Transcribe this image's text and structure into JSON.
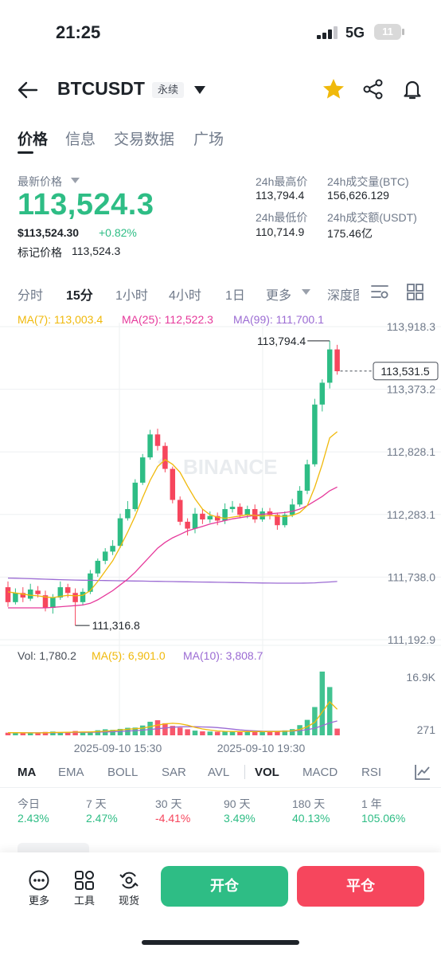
{
  "status_bar": {
    "time": "21:25",
    "network": "5G",
    "battery": "11"
  },
  "header": {
    "symbol": "BTCUSDT",
    "badge": "永续"
  },
  "tabs": [
    "价格",
    "信息",
    "交易数据",
    "广场"
  ],
  "price": {
    "latest_label": "最新价格",
    "latest": "113,524.3",
    "usd": "$113,524.30",
    "change": "+0.82%",
    "mark_label": "标记价格",
    "mark": "113,524.3"
  },
  "stats": {
    "high_label": "24h最高价",
    "high": "113,794.4",
    "vol_btc_label": "24h成交量(BTC)",
    "vol_btc": "156,626.129",
    "low_label": "24h最低价",
    "low": "110,714.9",
    "vol_usdt_label": "24h成交额(USDT)",
    "vol_usdt": "175.46亿"
  },
  "intervals": [
    "分时",
    "15分",
    "1小时",
    "4小时",
    "1日",
    "更多",
    "深度图"
  ],
  "ma": {
    "ma7": "MA(7): 113,003.4",
    "ma25": "MA(25): 112,522.3",
    "ma99": "MA(99): 111,700.1"
  },
  "axis": {
    "y": [
      "113,918.3",
      "113,373.2",
      "112,828.1",
      "112,283.1",
      "111,738.0",
      "111,192.9"
    ],
    "current": "113,531.5",
    "high_mark": "113,794.4",
    "low_mark": "111,316.8",
    "x": [
      "2025-09-10 15:30",
      "2025-09-10 19:30"
    ],
    "vol_top": "16.9K",
    "vol_bottom": "271",
    "watermark": "BINANCE"
  },
  "volume": {
    "vol": "Vol: 1,780.2",
    "ma5": "MA(5): 6,901.0",
    "ma10": "MA(10): 3,808.7"
  },
  "indicators": [
    "MA",
    "EMA",
    "BOLL",
    "SAR",
    "AVL",
    "VOL",
    "MACD",
    "RSI"
  ],
  "performance": [
    {
      "label": "今日",
      "value": "2.43%"
    },
    {
      "label": "7 天",
      "value": "2.47%"
    },
    {
      "label": "30 天",
      "value": "-4.41%"
    },
    {
      "label": "90 天",
      "value": "3.49%"
    },
    {
      "label": "180 天",
      "value": "40.13%"
    },
    {
      "label": "1 年",
      "value": "105.06%"
    }
  ],
  "tools": [
    "更多",
    "工具",
    "现货"
  ],
  "actions": {
    "open": "开仓",
    "close": "平仓"
  },
  "colors": {
    "up": "#2ebd85",
    "down": "#f6465d",
    "ma7": "#f0b90b",
    "ma25": "#e6399b",
    "ma99": "#9b6bd3",
    "star": "#f0b90b"
  },
  "chart_data": {
    "type": "candlestick",
    "interval": "15分",
    "y_ticks": [
      113918.3,
      113373.2,
      112828.1,
      112283.1,
      111738.0,
      111192.9
    ],
    "ylim": [
      111192.9,
      113918.3
    ],
    "high_label": 113794.4,
    "low_label": 111316.8,
    "current_price": 113531.5,
    "x_ticks": [
      "2025-09-10 15:30",
      "2025-09-10 19:30"
    ],
    "candles": [
      [
        111650,
        111520,
        111700,
        111480
      ],
      [
        111520,
        111600,
        111640,
        111500
      ],
      [
        111600,
        111560,
        111650,
        111520
      ],
      [
        111550,
        111630,
        111680,
        111530
      ],
      [
        111620,
        111590,
        111660,
        111560
      ],
      [
        111580,
        111470,
        111620,
        111440
      ],
      [
        111470,
        111560,
        111590,
        111420
      ],
      [
        111560,
        111650,
        111700,
        111540
      ],
      [
        111650,
        111600,
        111680,
        111560
      ],
      [
        111600,
        111520,
        111640,
        111316.8
      ],
      [
        111520,
        111610,
        111640,
        111490
      ],
      [
        111610,
        111770,
        111800,
        111590
      ],
      [
        111770,
        111880,
        111900,
        111740
      ],
      [
        111880,
        111960,
        111990,
        111850
      ],
      [
        111960,
        112010,
        112060,
        111930
      ],
      [
        112010,
        112250,
        112290,
        111990
      ],
      [
        112250,
        112330,
        112400,
        112230
      ],
      [
        112330,
        112560,
        112590,
        112310
      ],
      [
        112560,
        112780,
        112810,
        112540
      ],
      [
        112780,
        112980,
        113020,
        112760
      ],
      [
        112980,
        112880,
        113030,
        112840
      ],
      [
        112880,
        112680,
        112910,
        112650
      ],
      [
        112680,
        112410,
        112700,
        112380
      ],
      [
        112410,
        112220,
        112440,
        112190
      ],
      [
        112220,
        112160,
        112250,
        112100
      ],
      [
        112160,
        112290,
        112340,
        112120
      ],
      [
        112290,
        112240,
        112330,
        112200
      ],
      [
        112240,
        112270,
        112310,
        112210
      ],
      [
        112270,
        112230,
        112300,
        112190
      ],
      [
        112230,
        112330,
        112380,
        112200
      ],
      [
        112330,
        112350,
        112400,
        112300
      ],
      [
        112350,
        112280,
        112380,
        112250
      ],
      [
        112280,
        112330,
        112360,
        112250
      ],
      [
        112330,
        112240,
        112370,
        112210
      ],
      [
        112240,
        112310,
        112340,
        112220
      ],
      [
        112310,
        112280,
        112340,
        112240
      ],
      [
        112280,
        112190,
        112300,
        112150
      ],
      [
        112190,
        112280,
        112310,
        112170
      ],
      [
        112280,
        112370,
        112420,
        112260
      ],
      [
        112370,
        112490,
        112530,
        112350
      ],
      [
        112490,
        112720,
        112760,
        112460
      ],
      [
        112720,
        113240,
        113290,
        112700
      ],
      [
        113240,
        113430,
        113460,
        113180
      ],
      [
        113430,
        113720,
        113794.4,
        113380
      ],
      [
        113720,
        113530,
        113760,
        113500
      ]
    ],
    "ma7": [
      111610,
      111600,
      111590,
      111580,
      111575,
      111565,
      111560,
      111570,
      111580,
      111575,
      111580,
      111620,
      111700,
      111790,
      111880,
      112000,
      112130,
      112270,
      112430,
      112580,
      112700,
      112760,
      112720,
      112650,
      112530,
      112420,
      112330,
      112280,
      112260,
      112250,
      112260,
      112270,
      112280,
      112275,
      112270,
      112275,
      112270,
      112265,
      112275,
      112300,
      112360,
      112520,
      112720,
      112950,
      113003.4
    ],
    "ma25": [
      111470,
      111470,
      111470,
      111470,
      111470,
      111470,
      111475,
      111480,
      111485,
      111490,
      111495,
      111510,
      111540,
      111580,
      111620,
      111670,
      111720,
      111780,
      111850,
      111920,
      111990,
      112040,
      112080,
      112110,
      112140,
      112160,
      112180,
      112200,
      112215,
      112230,
      112245,
      112255,
      112265,
      112275,
      112285,
      112290,
      112295,
      112300,
      112310,
      112330,
      112360,
      112400,
      112440,
      112490,
      112522.3
    ],
    "ma99": [
      111730,
      111728,
      111726,
      111724,
      111722,
      111720,
      111718,
      111716,
      111714,
      111712,
      111711,
      111710,
      111709,
      111708,
      111707,
      111706,
      111705,
      111704,
      111703,
      111702,
      111701,
      111700,
      111699,
      111698,
      111697,
      111696,
      111695,
      111694,
      111693,
      111692,
      111691,
      111690,
      111689,
      111688,
      111687,
      111686,
      111685,
      111685,
      111685,
      111685,
      111686,
      111688,
      111692,
      111696,
      111700.1
    ],
    "volumes": [
      700,
      650,
      620,
      600,
      640,
      900,
      1000,
      760,
      720,
      1150,
      800,
      1000,
      1350,
      1600,
      1450,
      1700,
      2000,
      2050,
      2600,
      3600,
      4000,
      3200,
      2500,
      2050,
      1600,
      1250,
      1050,
      1000,
      950,
      980,
      1050,
      1000,
      950,
      1050,
      1000,
      950,
      1100,
      1300,
      1650,
      2700,
      4100,
      7500,
      16900,
      12800,
      1780.2
    ],
    "vol_ma5": [
      700,
      690,
      670,
      650,
      640,
      680,
      750,
      780,
      800,
      850,
      880,
      900,
      1000,
      1120,
      1250,
      1410,
      1600,
      1750,
      1900,
      2300,
      2700,
      3050,
      3190,
      3070,
      2690,
      2120,
      1690,
      1390,
      1170,
      1050,
      1010,
      1000,
      990,
      1000,
      1000,
      1000,
      1010,
      1070,
      1190,
      1550,
      2300,
      3450,
      6170,
      8900,
      6901.0
    ],
    "vol_ma10": [
      700,
      695,
      685,
      672,
      670,
      680,
      700,
      710,
      720,
      750,
      780,
      800,
      840,
      890,
      950,
      1030,
      1140,
      1250,
      1380,
      1560,
      1760,
      1950,
      2130,
      2260,
      2300,
      2280,
      2220,
      2170,
      2040,
      1850,
      1640,
      1440,
      1290,
      1180,
      1100,
      1080,
      1080,
      1100,
      1150,
      1270,
      1510,
      1880,
      2560,
      3300,
      3808.7
    ]
  }
}
